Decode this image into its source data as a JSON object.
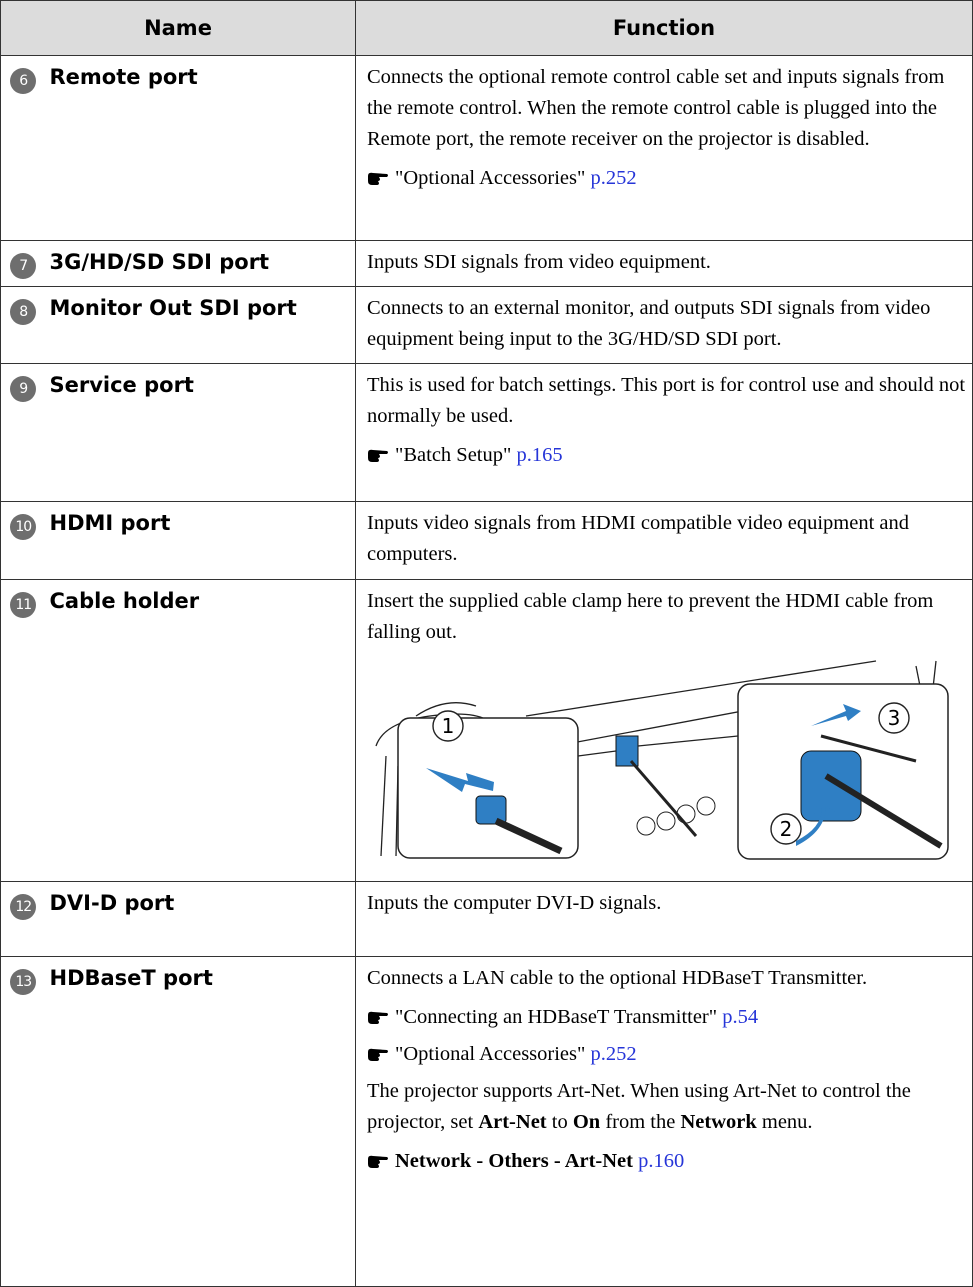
{
  "table": {
    "header": {
      "name": "Name",
      "function": "Function"
    },
    "rows": [
      {
        "number": "6",
        "name": "Remote port",
        "function": [
          {
            "text": "Connects the optional remote control cable set and inputs signals from the remote control. When the remote control cable is plugged into the Remote port, the remote receiver on the projector is disabled."
          },
          {
            "ref": "\"Optional Accessories\"",
            "page": "p.252"
          }
        ]
      },
      {
        "number": "7",
        "name": "3G/HD/SD SDI port",
        "function": [
          {
            "text": "Inputs SDI signals from video equipment."
          }
        ]
      },
      {
        "number": "8",
        "name": "Monitor Out SDI port",
        "function": [
          {
            "text": "Connects to an external monitor, and outputs SDI signals from video equipment being input to the 3G/HD/SD SDI port."
          }
        ]
      },
      {
        "number": "9",
        "name": "Service port",
        "function": [
          {
            "text": "This is used for batch settings. This port is for control use and should not normally be used."
          },
          {
            "ref": "\"Batch Setup\"",
            "page": "p.165"
          }
        ]
      },
      {
        "number": "10",
        "name": "HDMI port",
        "function": [
          {
            "text": "Inputs video signals from HDMI compatible video equipment and computers."
          }
        ]
      },
      {
        "number": "11",
        "name": "Cable holder",
        "function": [
          {
            "text": "Insert the supplied cable clamp here to prevent the HDMI cable from falling out."
          },
          {
            "figure": {
              "callouts": [
                "1",
                "2",
                "3"
              ]
            }
          }
        ]
      },
      {
        "number": "12",
        "name": "DVI-D port",
        "function": [
          {
            "text": "Inputs the computer DVI-D signals."
          }
        ]
      },
      {
        "number": "13",
        "name": "HDBaseT port",
        "function": [
          {
            "text": "Connects a LAN cable to the optional HDBaseT Transmitter."
          },
          {
            "ref": "\"Connecting an HDBaseT Transmitter\"",
            "page": "p.54"
          },
          {
            "ref": "\"Optional Accessories\"",
            "page": "p.252"
          },
          {
            "bold_parts": [
              "The projector supports Art-Net. When using Art-Net to control the projector, set ",
              "Art-Net",
              " to ",
              "On",
              " from the ",
              "Network",
              " menu."
            ]
          },
          {
            "ref_parts": [
              "Network",
              " - ",
              "Others",
              " - ",
              "Art-Net"
            ],
            "page": "p.160"
          }
        ]
      }
    ]
  }
}
